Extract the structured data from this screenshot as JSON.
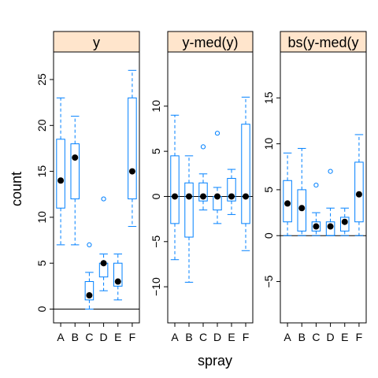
{
  "chart_data": [
    {
      "type": "box",
      "panel_title": "y",
      "categories": [
        "A",
        "B",
        "C",
        "D",
        "E",
        "F"
      ],
      "ylim": [
        -1.5,
        28
      ],
      "yticks": [
        0,
        5,
        10,
        15,
        20,
        25
      ],
      "reference_line": 0,
      "boxes": [
        {
          "cat": "A",
          "min": 7,
          "q1": 11,
          "median": 14,
          "q3": 18.5,
          "max": 23,
          "outliers": []
        },
        {
          "cat": "B",
          "min": 7,
          "q1": 12,
          "median": 16.5,
          "q3": 18,
          "max": 21,
          "outliers": []
        },
        {
          "cat": "C",
          "min": 0,
          "q1": 1,
          "median": 1.5,
          "q3": 3,
          "max": 4,
          "outliers": [
            7
          ]
        },
        {
          "cat": "D",
          "min": 2,
          "q1": 3.5,
          "median": 5,
          "q3": 5,
          "max": 6,
          "outliers": [
            12
          ]
        },
        {
          "cat": "E",
          "min": 1,
          "q1": 2.5,
          "median": 3,
          "q3": 5,
          "max": 6,
          "outliers": []
        },
        {
          "cat": "F",
          "min": 9,
          "q1": 12,
          "median": 15,
          "q3": 23,
          "max": 26,
          "outliers": []
        }
      ]
    },
    {
      "type": "box",
      "panel_title": "y-med(y)",
      "categories": [
        "A",
        "B",
        "C",
        "D",
        "E",
        "F"
      ],
      "ylim": [
        -14,
        16
      ],
      "yticks": [
        -10,
        -5,
        0,
        5,
        10
      ],
      "reference_line": 0,
      "boxes": [
        {
          "cat": "A",
          "min": -7,
          "q1": -3,
          "median": 0,
          "q3": 4.5,
          "max": 9,
          "outliers": []
        },
        {
          "cat": "B",
          "min": -9.5,
          "q1": -4.5,
          "median": 0,
          "q3": 1.5,
          "max": 4.5,
          "outliers": []
        },
        {
          "cat": "C",
          "min": -1.5,
          "q1": -0.5,
          "median": 0,
          "q3": 1.5,
          "max": 2.5,
          "outliers": [
            5.5
          ]
        },
        {
          "cat": "D",
          "min": -3,
          "q1": -1.5,
          "median": 0,
          "q3": 0,
          "max": 1,
          "outliers": [
            7
          ]
        },
        {
          "cat": "E",
          "min": -2,
          "q1": -0.5,
          "median": 0,
          "q3": 2,
          "max": 3,
          "outliers": []
        },
        {
          "cat": "F",
          "min": -6,
          "q1": -3,
          "median": 0,
          "q3": 8,
          "max": 11,
          "outliers": []
        }
      ]
    },
    {
      "type": "box",
      "panel_title": "bs(y-med(y",
      "categories": [
        "A",
        "B",
        "C",
        "D",
        "E",
        "F"
      ],
      "ylim": [
        -9.5,
        20
      ],
      "yticks": [
        -5,
        0,
        5,
        10,
        15
      ],
      "reference_line": 0,
      "boxes": [
        {
          "cat": "A",
          "min": 0,
          "q1": 1.5,
          "median": 3.5,
          "q3": 6,
          "max": 9,
          "outliers": []
        },
        {
          "cat": "B",
          "min": 0,
          "q1": 0.5,
          "median": 3,
          "q3": 5,
          "max": 9.5,
          "outliers": []
        },
        {
          "cat": "C",
          "min": 0,
          "q1": 0.5,
          "median": 1,
          "q3": 1.5,
          "max": 2.5,
          "outliers": [
            5.5
          ]
        },
        {
          "cat": "D",
          "min": 0,
          "q1": 0,
          "median": 1,
          "q3": 1.5,
          "max": 3,
          "outliers": [
            7
          ]
        },
        {
          "cat": "E",
          "min": 0,
          "q1": 0.5,
          "median": 1.5,
          "q3": 2,
          "max": 3,
          "outliers": []
        },
        {
          "cat": "F",
          "min": 0,
          "q1": 1.5,
          "median": 4.5,
          "q3": 8,
          "max": 11,
          "outliers": []
        }
      ]
    }
  ],
  "labels": {
    "ylabel": "count",
    "xlabel": "spray"
  },
  "colors": {
    "box_stroke": "#0080ff",
    "strip_fill": "#ffe5cc",
    "median_dot": "#000000",
    "reference_line": "#000000"
  }
}
